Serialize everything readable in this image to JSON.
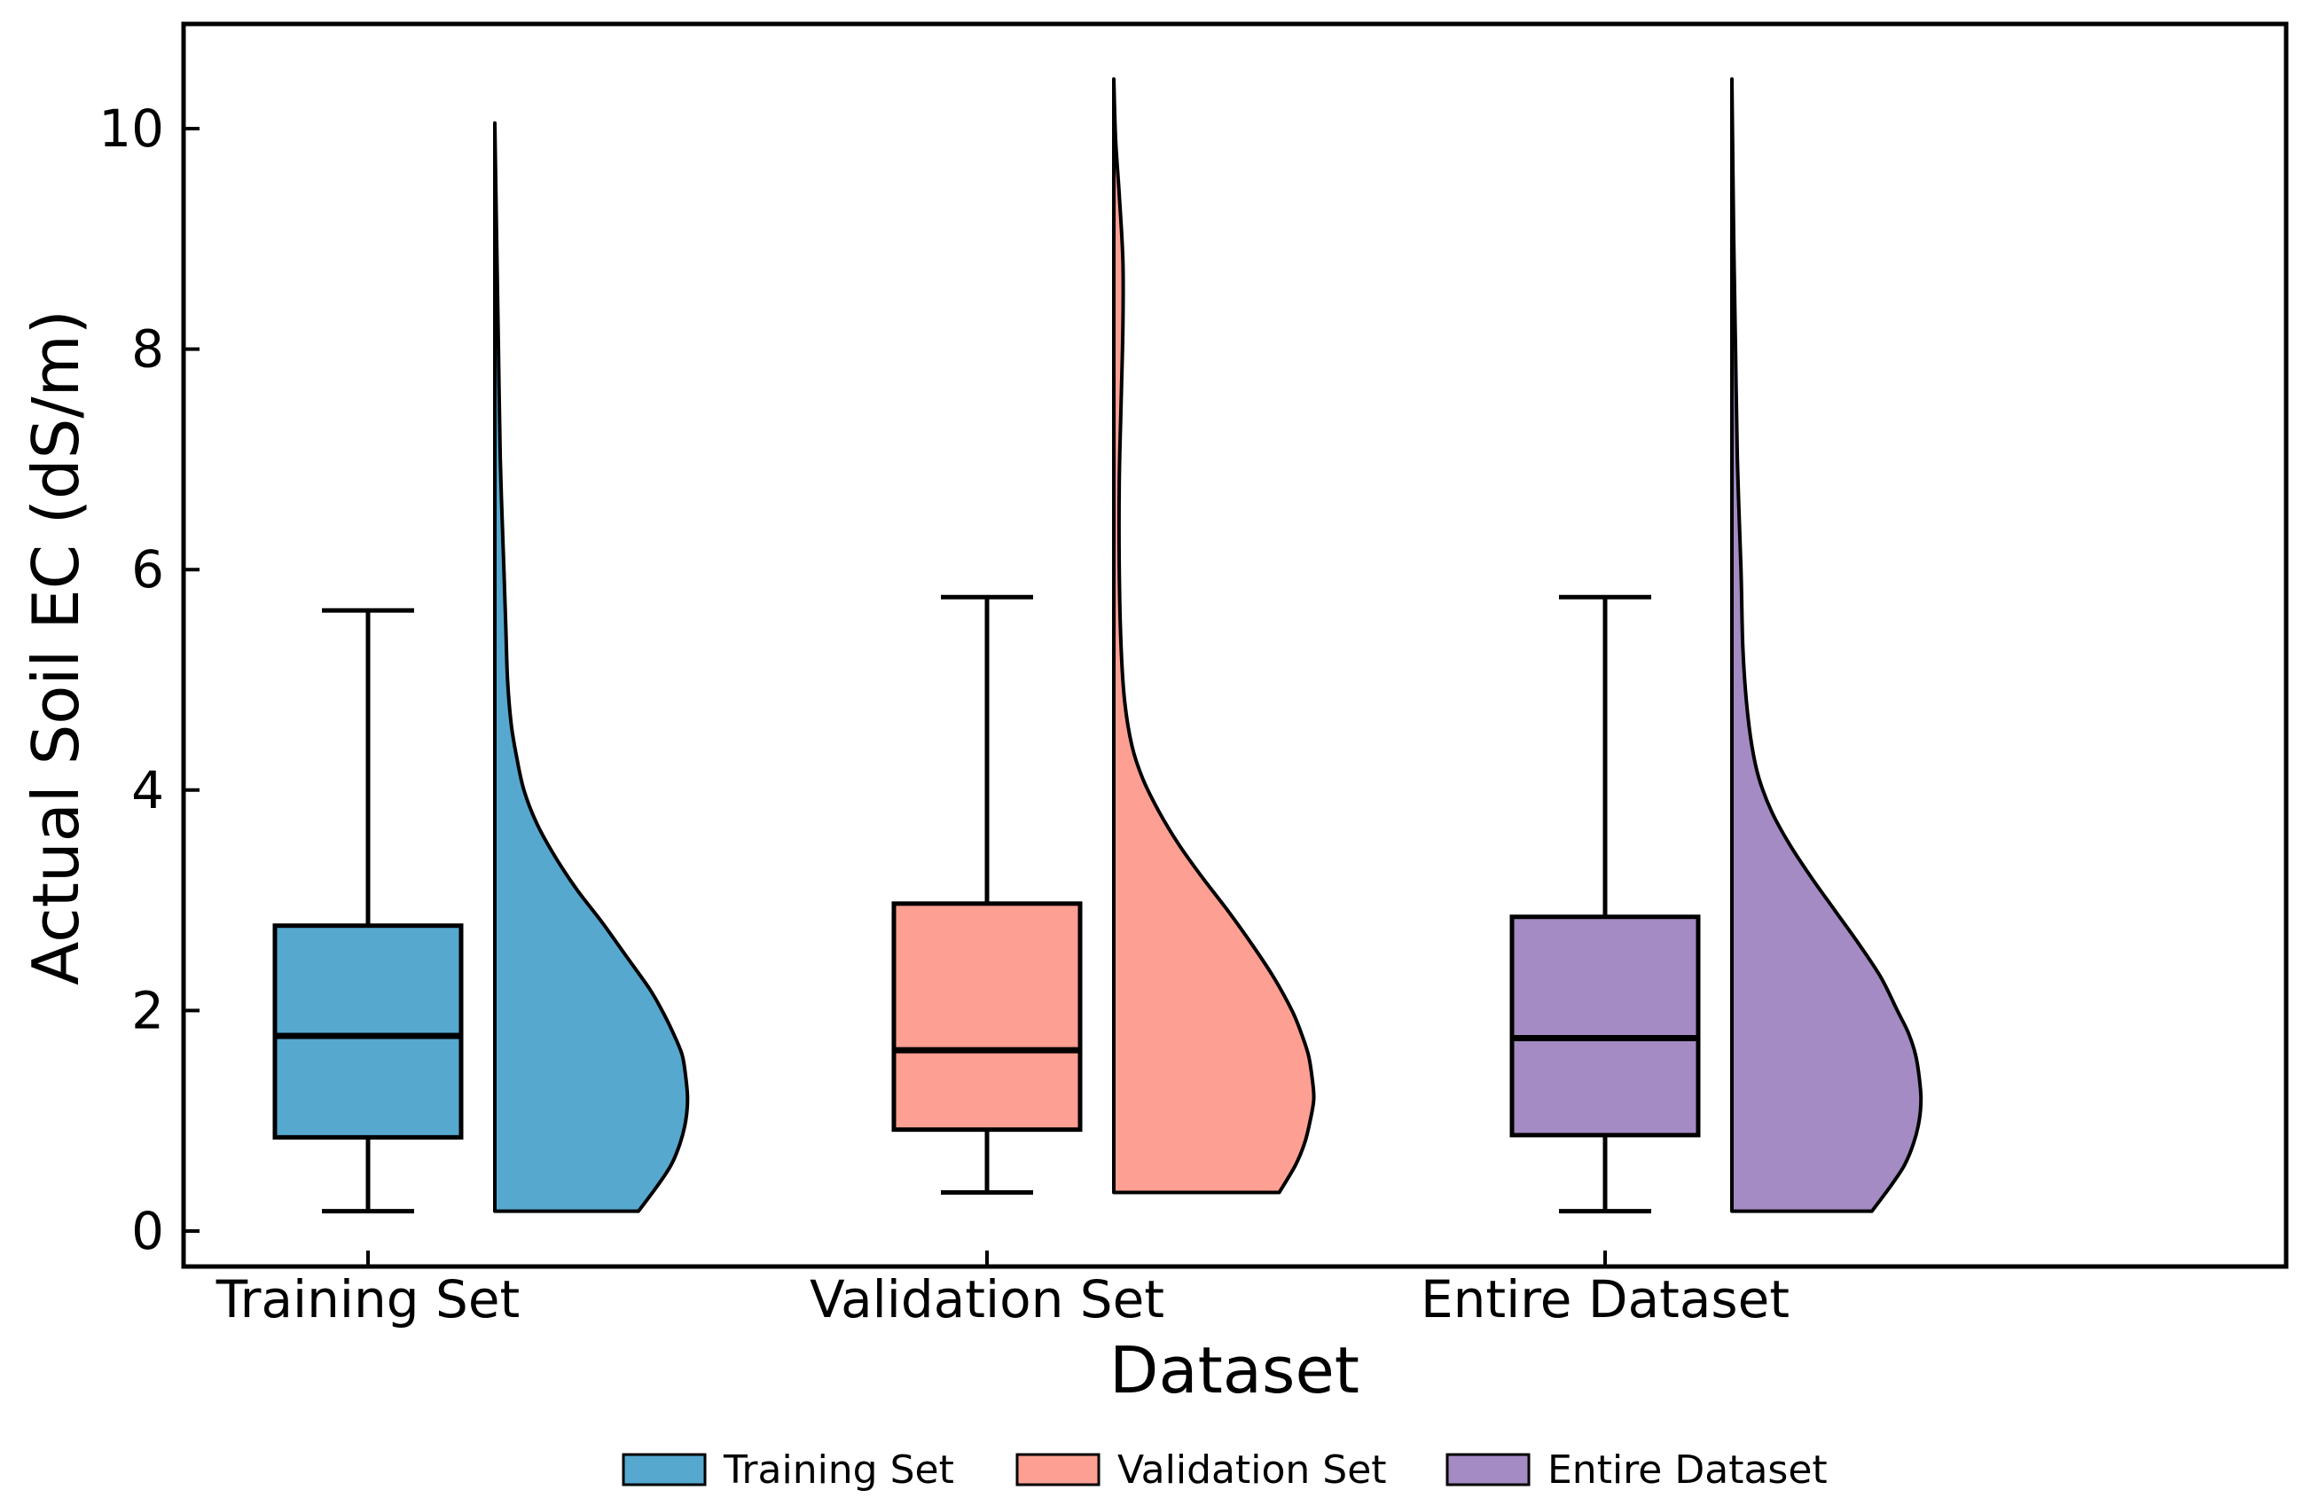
{
  "chart_data": {
    "type": "box_violin",
    "title": "",
    "xlabel": "Dataset",
    "ylabel": "Actual Soil EC (dS/m)",
    "ylim": [
      -0.3,
      11
    ],
    "yticks": [
      "0",
      "2",
      "4",
      "6",
      "8",
      "10"
    ],
    "ytick_values": [
      0,
      2,
      4,
      6,
      8,
      10
    ],
    "categories": [
      "Training Set",
      "Validation Set",
      "Entire Dataset"
    ],
    "legend_position": "bottom-center",
    "series": [
      {
        "name": "Training Set",
        "color": "#56a8cf",
        "box": {
          "min": 0.18,
          "q1": 0.85,
          "median": 1.77,
          "q3": 2.77,
          "max": 5.63
        },
        "violin": [
          [
            0.18,
            0.79
          ],
          [
            0.4,
            0.89
          ],
          [
            0.6,
            0.97
          ],
          [
            0.8,
            1.02
          ],
          [
            1.0,
            1.05
          ],
          [
            1.2,
            1.06
          ],
          [
            1.4,
            1.05
          ],
          [
            1.6,
            1.03
          ],
          [
            1.8,
            0.98
          ],
          [
            2.0,
            0.92
          ],
          [
            2.2,
            0.85
          ],
          [
            2.5,
            0.72
          ],
          [
            2.8,
            0.59
          ],
          [
            3.1,
            0.45
          ],
          [
            3.4,
            0.33
          ],
          [
            3.7,
            0.23
          ],
          [
            4.0,
            0.16
          ],
          [
            4.3,
            0.12
          ],
          [
            4.6,
            0.09
          ],
          [
            5.0,
            0.07
          ],
          [
            5.5,
            0.06
          ],
          [
            6.0,
            0.05
          ],
          [
            7.0,
            0.03
          ],
          [
            8.0,
            0.02
          ],
          [
            9.0,
            0.01
          ],
          [
            10.05,
            0.0
          ]
        ]
      },
      {
        "name": "Validation Set",
        "color": "#fe9f93",
        "box": {
          "min": 0.35,
          "q1": 0.92,
          "median": 1.64,
          "q3": 2.97,
          "max": 5.75
        },
        "violin": [
          [
            0.35,
            0.91
          ],
          [
            0.6,
            1.0
          ],
          [
            0.8,
            1.05
          ],
          [
            1.0,
            1.08
          ],
          [
            1.2,
            1.1
          ],
          [
            1.4,
            1.09
          ],
          [
            1.6,
            1.07
          ],
          [
            1.8,
            1.03
          ],
          [
            2.0,
            0.98
          ],
          [
            2.3,
            0.88
          ],
          [
            2.6,
            0.76
          ],
          [
            2.9,
            0.63
          ],
          [
            3.2,
            0.49
          ],
          [
            3.5,
            0.36
          ],
          [
            3.8,
            0.25
          ],
          [
            4.1,
            0.16
          ],
          [
            4.4,
            0.1
          ],
          [
            4.8,
            0.06
          ],
          [
            5.3,
            0.04
          ],
          [
            6.0,
            0.03
          ],
          [
            6.8,
            0.03
          ],
          [
            7.5,
            0.04
          ],
          [
            8.2,
            0.05
          ],
          [
            8.8,
            0.05
          ],
          [
            9.4,
            0.03
          ],
          [
            9.9,
            0.01
          ],
          [
            10.45,
            0.0
          ]
        ]
      },
      {
        "name": "Entire Dataset",
        "color": "#a48bc3",
        "box": {
          "min": 0.18,
          "q1": 0.87,
          "median": 1.75,
          "q3": 2.85,
          "max": 5.75
        },
        "violin": [
          [
            0.18,
            0.77
          ],
          [
            0.4,
            0.87
          ],
          [
            0.6,
            0.95
          ],
          [
            0.8,
            1.0
          ],
          [
            1.0,
            1.03
          ],
          [
            1.2,
            1.04
          ],
          [
            1.4,
            1.03
          ],
          [
            1.6,
            1.01
          ],
          [
            1.8,
            0.97
          ],
          [
            2.0,
            0.91
          ],
          [
            2.3,
            0.82
          ],
          [
            2.6,
            0.7
          ],
          [
            2.9,
            0.57
          ],
          [
            3.2,
            0.44
          ],
          [
            3.5,
            0.32
          ],
          [
            3.8,
            0.22
          ],
          [
            4.1,
            0.15
          ],
          [
            4.4,
            0.11
          ],
          [
            4.8,
            0.08
          ],
          [
            5.3,
            0.06
          ],
          [
            6.0,
            0.05
          ],
          [
            7.0,
            0.03
          ],
          [
            8.0,
            0.02
          ],
          [
            9.0,
            0.01
          ],
          [
            10.45,
            0.0
          ]
        ]
      }
    ]
  }
}
